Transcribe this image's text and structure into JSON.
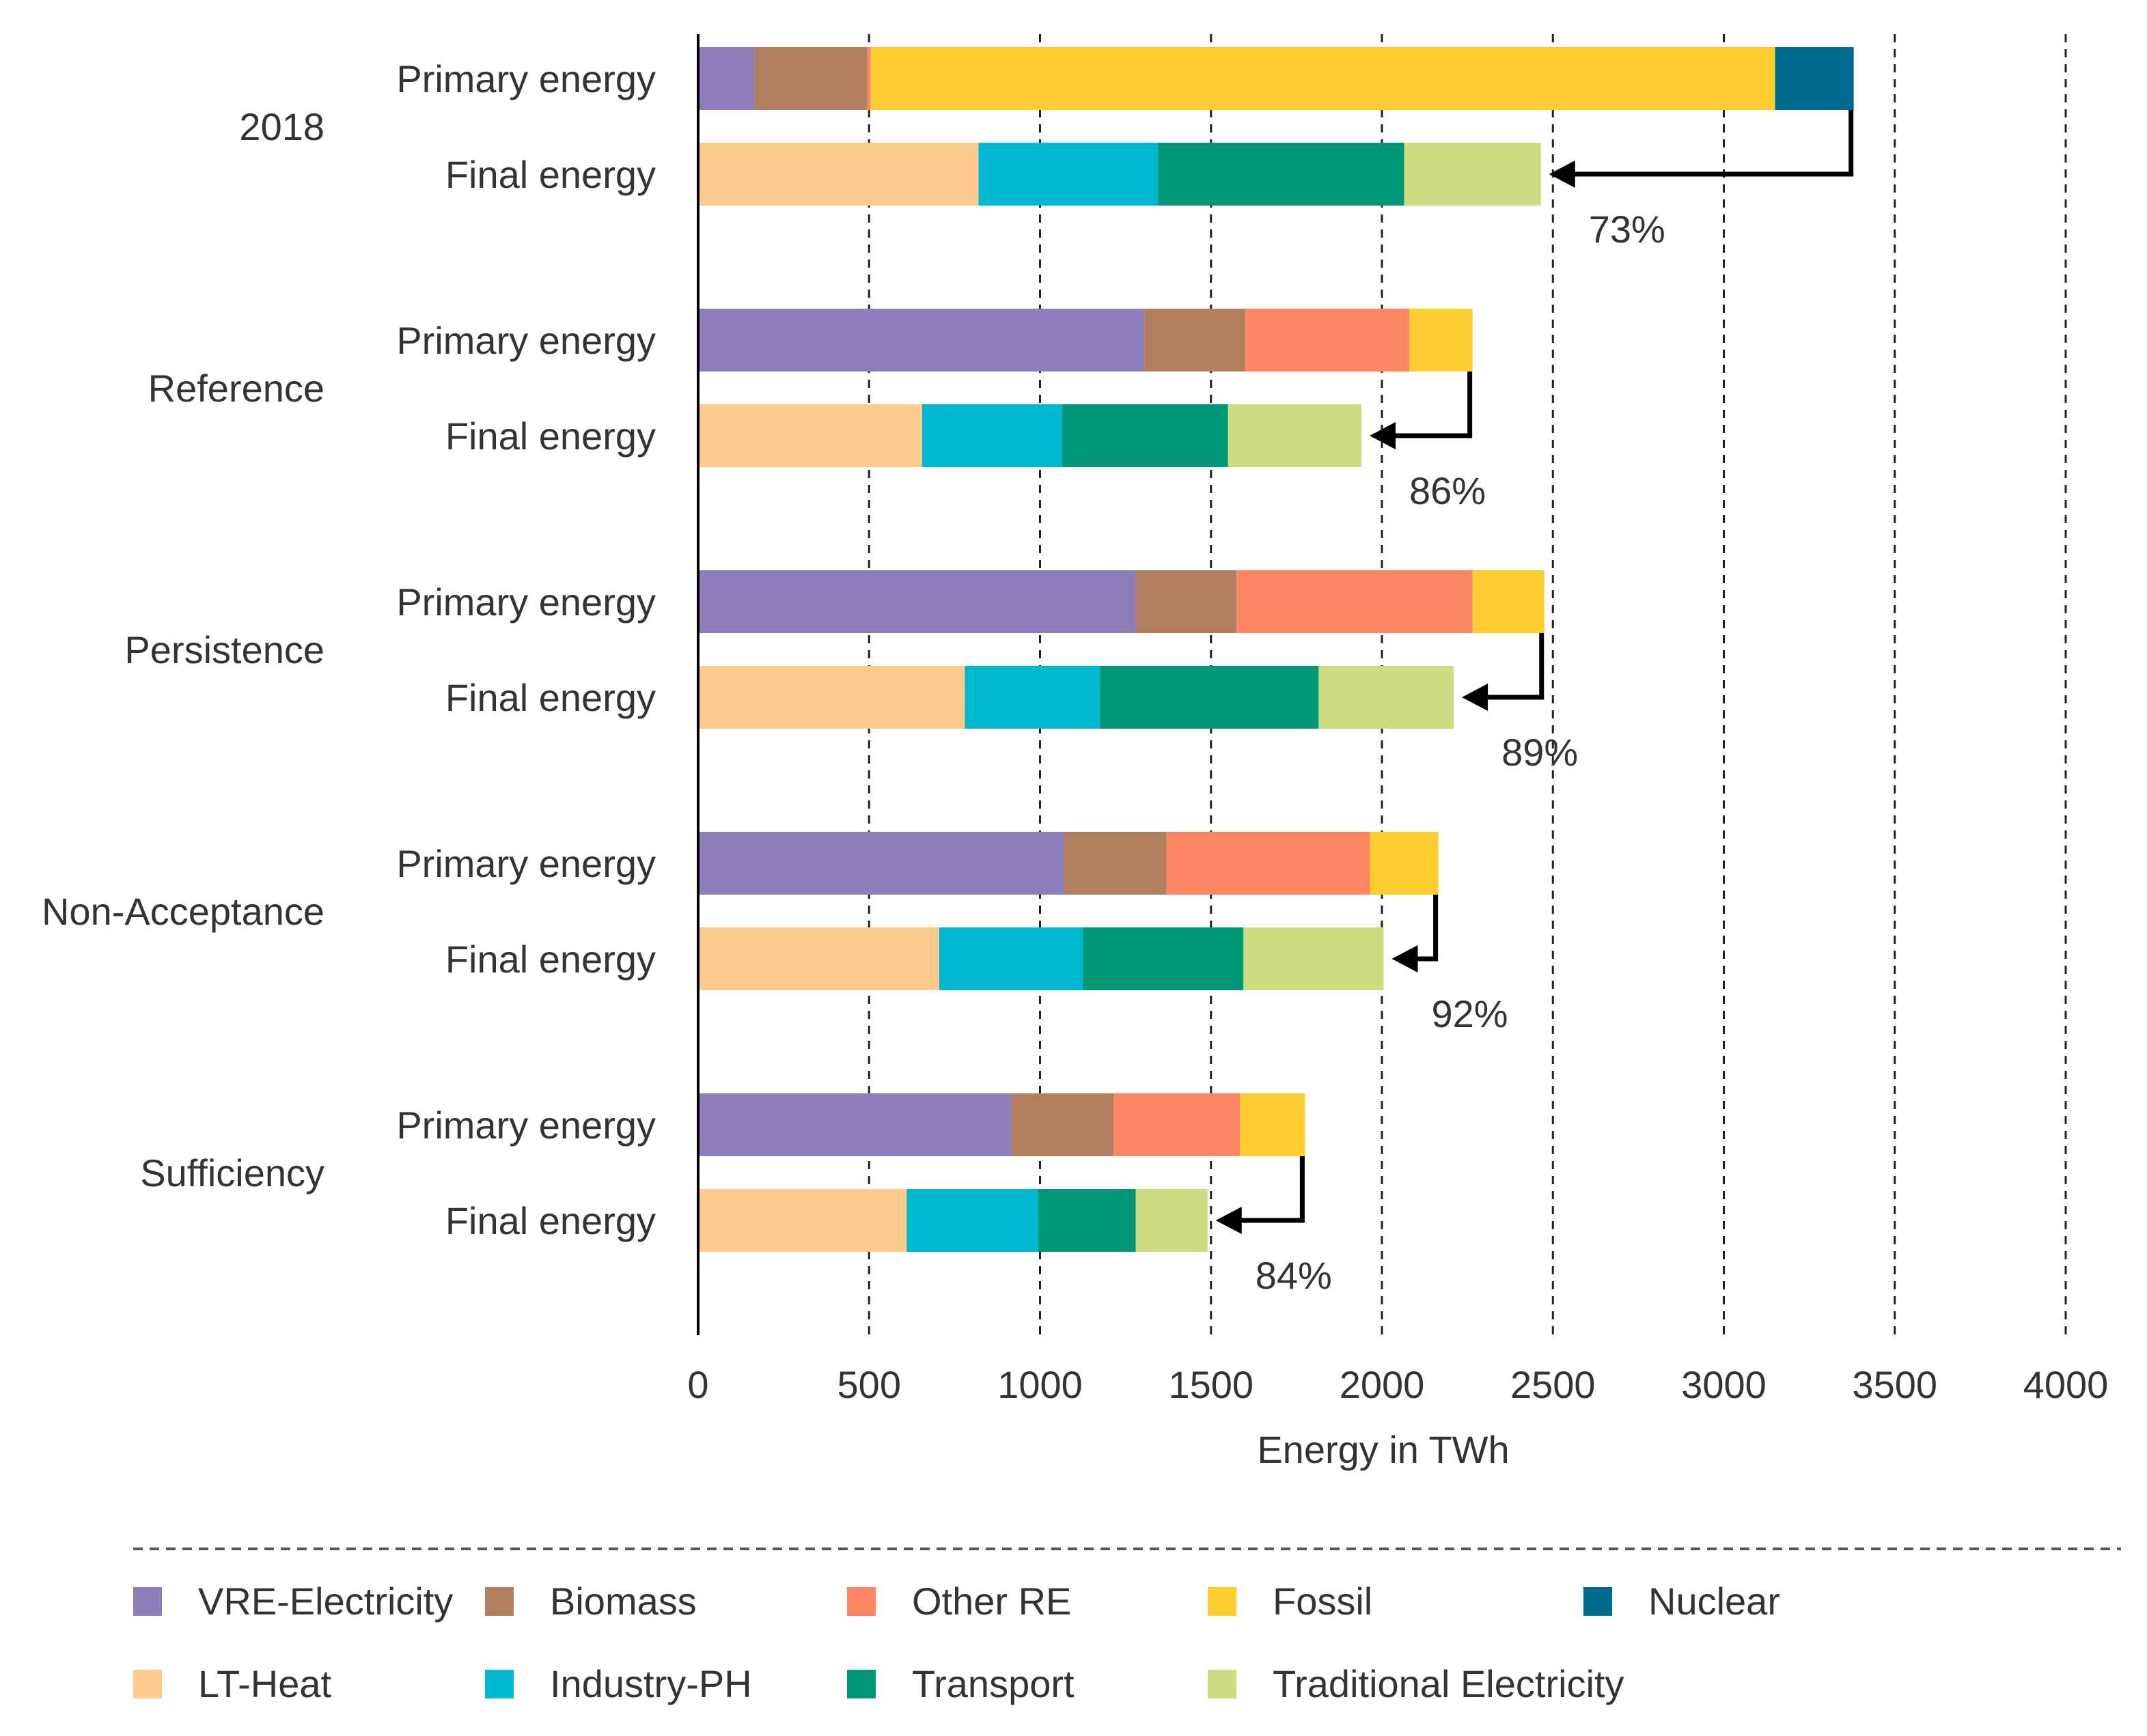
{
  "chart_data": {
    "type": "bar",
    "orientation": "horizontal",
    "stacked": true,
    "xlabel": "Energy in TWh",
    "xlim": [
      0,
      4000
    ],
    "xticks": [
      0,
      500,
      1000,
      1500,
      2000,
      2500,
      3000,
      3500,
      4000
    ],
    "grid": "vertical dashed",
    "row_labels": {
      "primary": "Primary energy",
      "final": "Final energy"
    },
    "primary_series": [
      {
        "name": "VRE-Electricity",
        "color": "#8e7dbb"
      },
      {
        "name": "Biomass",
        "color": "#b17f5e"
      },
      {
        "name": "Other RE",
        "color": "#fd8763"
      },
      {
        "name": "Fossil",
        "color": "#fecd2f"
      },
      {
        "name": "Nuclear",
        "color": "#006b8f"
      }
    ],
    "final_series": [
      {
        "name": "LT-Heat",
        "color": "#fdcb8c"
      },
      {
        "name": "Industry-PH",
        "color": "#00b8cf"
      },
      {
        "name": "Transport",
        "color": "#009777"
      },
      {
        "name": "Traditional Electricity",
        "color": "#cddc81"
      }
    ],
    "scenarios": [
      {
        "name": "2018",
        "primary": [
          165,
          330,
          10,
          2645,
          230
        ],
        "final": [
          820,
          525,
          720,
          400
        ],
        "efficiency": "73%"
      },
      {
        "name": "Reference",
        "primary": [
          1305,
          295,
          480,
          185,
          0
        ],
        "final": [
          655,
          410,
          485,
          390
        ],
        "efficiency": "86%"
      },
      {
        "name": "Persistence",
        "primary": [
          1280,
          295,
          690,
          210,
          0
        ],
        "final": [
          780,
          395,
          640,
          395
        ],
        "efficiency": "89%"
      },
      {
        "name": "Non-Acceptance",
        "primary": [
          1070,
          300,
          595,
          200,
          0
        ],
        "final": [
          705,
          420,
          470,
          410
        ],
        "efficiency": "92%"
      },
      {
        "name": "Sufficiency",
        "primary": [
          915,
          300,
          370,
          190,
          0
        ],
        "final": [
          610,
          385,
          285,
          210
        ],
        "efficiency": "84%"
      }
    ]
  }
}
